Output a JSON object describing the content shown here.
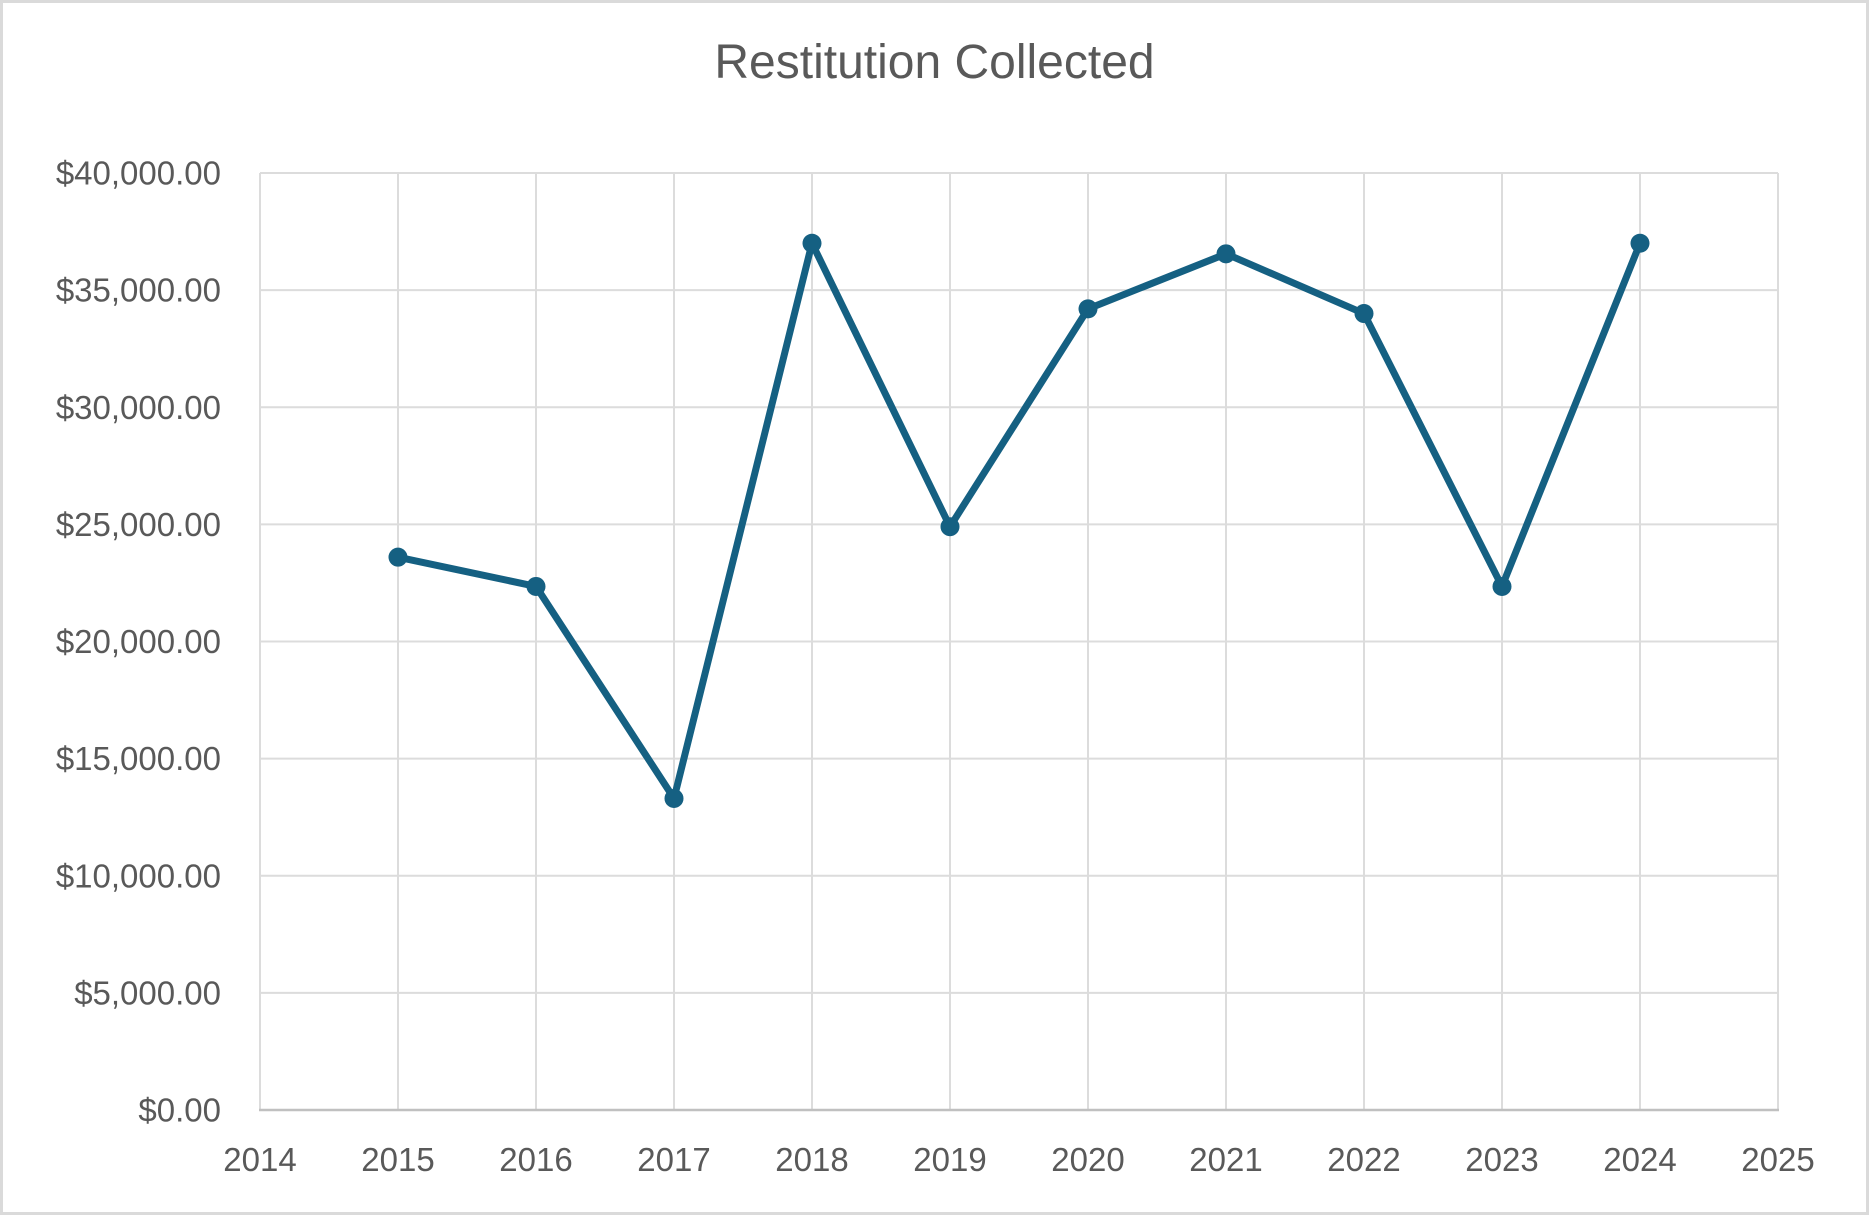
{
  "chart_data": {
    "type": "line",
    "title": "Restitution Collected",
    "xlabel": "",
    "ylabel": "",
    "x": [
      2015,
      2016,
      2017,
      2018,
      2019,
      2020,
      2021,
      2022,
      2023,
      2024
    ],
    "series": [
      {
        "name": "Restitution Collected",
        "values": [
          23600,
          22350,
          13300,
          37000,
          24900,
          34200,
          36550,
          34000,
          22350,
          37000
        ]
      }
    ],
    "x_axis": {
      "min": 2014,
      "max": 2025,
      "tick_labels": [
        "2014",
        "2015",
        "2016",
        "2017",
        "2018",
        "2019",
        "2020",
        "2021",
        "2022",
        "2023",
        "2024",
        "2025"
      ]
    },
    "y_axis": {
      "min": 0,
      "max": 40000,
      "step": 5000,
      "tick_labels_top_to_bottom": [
        "$40,000.00",
        "$35,000.00",
        "$30,000.00",
        "$25,000.00",
        "$20,000.00",
        "$15,000.00",
        "$10,000.00",
        "$5,000.00",
        "$0.00"
      ]
    },
    "grid": true,
    "legend": false,
    "colors": {
      "series": "#156082",
      "text": "#595959",
      "gridline": "#dcdcdc",
      "axis_line": "#c0c0c0",
      "background": "#ffffff",
      "frame_border": "#dadada"
    }
  }
}
